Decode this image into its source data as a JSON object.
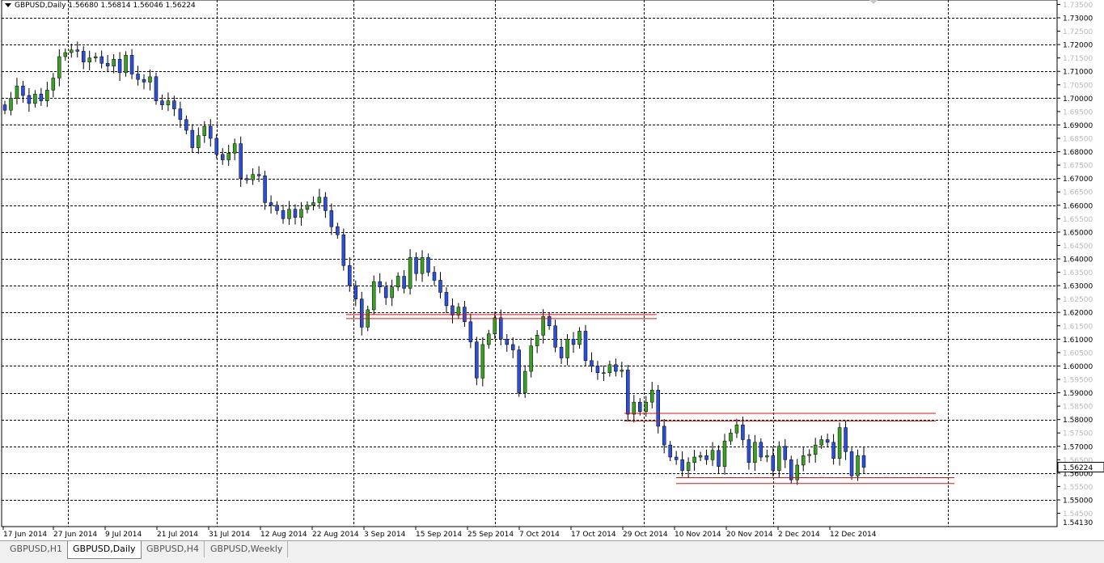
{
  "symbol_info": "GBPUSD,Daily  1.56680 1.56814 1.56046 1.56224",
  "chart_data": {
    "type": "candlestick",
    "ylim": [
      1.5413,
      1.7368
    ],
    "price_labels": [
      "1.73500",
      "1.73000",
      "1.72500",
      "1.72000",
      "1.71500",
      "1.71000",
      "1.70500",
      "1.70000",
      "1.69500",
      "1.69000",
      "1.68500",
      "1.68000",
      "1.67500",
      "1.67000",
      "1.66500",
      "1.66000",
      "1.65500",
      "1.65000",
      "1.64500",
      "1.64000",
      "1.63500",
      "1.63000",
      "1.62500",
      "1.62000",
      "1.61500",
      "1.61000",
      "1.60500",
      "1.60000",
      "1.59500",
      "1.59000",
      "1.58500",
      "1.58000",
      "1.57500",
      "1.57000",
      "1.56500",
      "1.56000",
      "1.55500",
      "1.55000",
      "1.54500"
    ],
    "bottom_label": "1.54130",
    "current_price": "1.56224",
    "date_labels": [
      "17 Jun 2014",
      "27 Jun 2014",
      "9 Jul 2014",
      "21 Jul 2014",
      "31 Jul 2014",
      "12 Aug 2014",
      "22 Aug 2014",
      "3 Sep 2014",
      "15 Sep 2014",
      "25 Sep 2014",
      "7 Oct 2014",
      "17 Oct 2014",
      "29 Oct 2014",
      "10 Nov 2014",
      "20 Nov 2014",
      "2 Dec 2014",
      "12 Dec 2014"
    ],
    "closes": [
      1.6955,
      1.7,
      1.7045,
      1.701,
      1.698,
      1.7015,
      1.699,
      1.703,
      1.7075,
      1.7155,
      1.717,
      1.718,
      1.7175,
      1.7135,
      1.715,
      1.7155,
      1.713,
      1.712,
      1.7145,
      1.7095,
      1.716,
      1.709,
      1.707,
      1.706,
      1.708,
      1.699,
      1.6975,
      1.699,
      1.696,
      1.692,
      1.688,
      1.6815,
      1.686,
      1.6895,
      1.685,
      1.679,
      1.677,
      1.6795,
      1.683,
      1.67,
      1.6695,
      1.6715,
      1.671,
      1.661,
      1.66,
      1.658,
      1.655,
      1.6585,
      1.6555,
      1.6585,
      1.66,
      1.661,
      1.663,
      1.658,
      1.652,
      1.649,
      1.6375,
      1.63,
      1.625,
      1.6145,
      1.621,
      1.6315,
      1.6295,
      1.6255,
      1.6295,
      1.6335,
      1.629,
      1.6405,
      1.6345,
      1.6405,
      1.635,
      1.632,
      1.6275,
      1.6225,
      1.619,
      1.622,
      1.6165,
      1.609,
      1.5955,
      1.608,
      1.612,
      1.618,
      1.61,
      1.608,
      1.606,
      1.59,
      1.598,
      1.6075,
      1.6115,
      1.6185,
      1.615,
      1.607,
      1.603,
      1.61,
      1.608,
      1.613,
      1.602,
      1.6,
      1.5975,
      1.5975,
      1.6005,
      1.598,
      1.5985,
      1.582,
      1.5865,
      1.583,
      1.5865,
      1.591,
      1.5775,
      1.5705,
      1.566,
      1.565,
      1.561,
      1.564,
      1.566,
      1.5665,
      1.565,
      1.5685,
      1.5625,
      1.572,
      1.575,
      1.578,
      1.5725,
      1.564,
      1.5715,
      1.566,
      1.5665,
      1.561,
      1.57,
      1.565,
      1.5575,
      1.563,
      1.5665,
      1.567,
      1.5705,
      1.5725,
      1.5715,
      1.5655,
      1.577,
      1.568,
      1.559,
      1.5665,
      1.5622
    ]
  },
  "tabs": [
    {
      "label": "GBPUSD,H1"
    },
    {
      "label": "GBPUSD,Daily"
    },
    {
      "label": "GBPUSD,H4"
    },
    {
      "label": "GBPUSD,Weekly"
    }
  ],
  "colors": {
    "bull": "#3aa022",
    "bear": "#2b4fd6",
    "support_line": "#e01010",
    "grid": "#000000"
  }
}
